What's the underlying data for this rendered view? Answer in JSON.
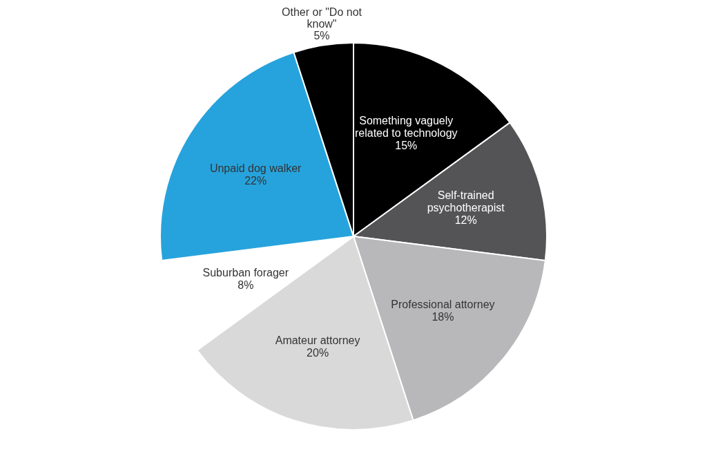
{
  "chart_data": {
    "type": "pie",
    "categories": [
      "Something vaguely related to technology",
      "Self-trained psychotherapist",
      "Professional attorney",
      "Amateur attorney",
      "Suburban forager",
      "Unpaid dog walker",
      "Other or \"Do not know\""
    ],
    "values": [
      15,
      12,
      18,
      20,
      8,
      22,
      5
    ],
    "colors": [
      "#000000",
      "#545457",
      "#b8b8ba",
      "#d9d9d9",
      "#ffffff",
      "#26a3dd",
      "#000000"
    ],
    "value_labels": [
      "15%",
      "12%",
      "18%",
      "20%",
      "8%",
      "22%",
      "5%"
    ]
  }
}
